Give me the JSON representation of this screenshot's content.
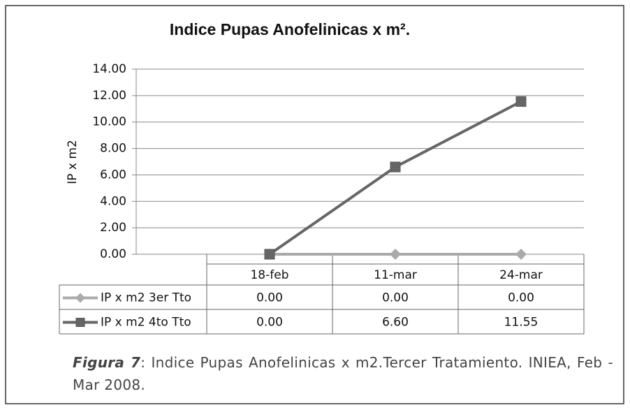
{
  "chart_data": {
    "type": "line",
    "title": "Indice Pupas Anofelinicas x m².",
    "y_label": "IP x m2",
    "categories": [
      "18-feb",
      "11-mar",
      "24-mar"
    ],
    "series": [
      {
        "name": "IP x m2 3er Tto",
        "color": "#aaaaaa",
        "marker": "diamond",
        "values": [
          0,
          0,
          0
        ],
        "value_labels": [
          "0.00",
          "0.00",
          "0.00"
        ]
      },
      {
        "name": "IP x m2 4to Tto",
        "color": "#666666",
        "marker": "square",
        "values": [
          0,
          6.6,
          11.55
        ],
        "value_labels": [
          "0.00",
          "6.60",
          "11.55"
        ]
      }
    ],
    "ylim": [
      0,
      14
    ],
    "yticks": [
      {
        "value": 0,
        "label": "0.00"
      },
      {
        "value": 2,
        "label": "2.00"
      },
      {
        "value": 4,
        "label": "4.00"
      },
      {
        "value": 6,
        "label": "6.00"
      },
      {
        "value": 8,
        "label": "8.00"
      },
      {
        "value": 10,
        "label": "10.00"
      },
      {
        "value": 12,
        "label": "12.00"
      },
      {
        "value": 14,
        "label": "14.00"
      }
    ],
    "grid": true
  },
  "caption": {
    "label": "Figura 7",
    "text": ": Indice Pupas Anofelinicas x m2.Tercer Tratamiento. INIEA, Feb - Mar 2008."
  }
}
